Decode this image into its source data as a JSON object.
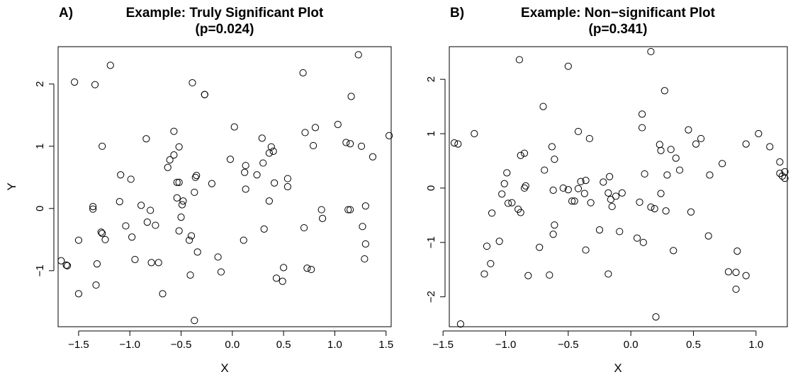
{
  "chart_data": [
    {
      "type": "scatter",
      "panel": "A)",
      "title": "Example: Truly Significant Plot",
      "subtitle": "(p=0.024)",
      "xlabel": "X",
      "ylabel": "Y",
      "xlim": [
        -1.7,
        1.55
      ],
      "ylim": [
        -1.9,
        2.6
      ],
      "xticks": [
        -1.5,
        -1.0,
        -0.5,
        0.0,
        0.5,
        1.0,
        1.5
      ],
      "xtick_labels": [
        "−1.5",
        "−1.0",
        "−0.5",
        "0.0",
        "0.5",
        "1.0",
        "1.5"
      ],
      "yticks": [
        -1,
        0,
        1,
        2
      ],
      "ytick_labels": [
        "−1",
        "0",
        "1",
        "2"
      ],
      "grid": false,
      "legend": "none",
      "points": [
        [
          -1.54,
          2.03
        ],
        [
          -1.34,
          1.99
        ],
        [
          -1.19,
          2.3
        ],
        [
          -0.39,
          2.02
        ],
        [
          -0.27,
          1.83
        ],
        [
          0.69,
          2.18
        ],
        [
          1.23,
          2.47
        ],
        [
          -0.57,
          1.24
        ],
        [
          -0.84,
          1.12
        ],
        [
          -0.27,
          1.83
        ],
        [
          0.02,
          1.31
        ],
        [
          0.29,
          1.13
        ],
        [
          0.38,
          0.99
        ],
        [
          0.4,
          0.92
        ],
        [
          0.71,
          1.22
        ],
        [
          0.81,
          1.3
        ],
        [
          0.79,
          1.01
        ],
        [
          1.03,
          1.35
        ],
        [
          1.11,
          1.06
        ],
        [
          1.15,
          1.04
        ],
        [
          1.16,
          1.8
        ],
        [
          1.26,
          1.0
        ],
        [
          1.37,
          0.83
        ],
        [
          1.53,
          1.17
        ],
        [
          -1.27,
          1.0
        ],
        [
          -1.09,
          0.54
        ],
        [
          -0.99,
          0.47
        ],
        [
          -0.63,
          0.66
        ],
        [
          -0.61,
          0.78
        ],
        [
          -0.57,
          0.86
        ],
        [
          -0.52,
          0.99
        ],
        [
          -0.54,
          0.42
        ],
        [
          -0.52,
          0.42
        ],
        [
          -0.36,
          0.5
        ],
        [
          -0.35,
          0.53
        ],
        [
          -0.2,
          0.4
        ],
        [
          -0.02,
          0.79
        ],
        [
          0.12,
          0.58
        ],
        [
          0.13,
          0.69
        ],
        [
          0.24,
          0.54
        ],
        [
          0.3,
          0.73
        ],
        [
          0.36,
          0.89
        ],
        [
          0.41,
          0.41
        ],
        [
          0.54,
          0.48
        ],
        [
          0.54,
          0.35
        ],
        [
          0.13,
          0.31
        ],
        [
          -0.37,
          0.26
        ],
        [
          -0.54,
          0.17
        ],
        [
          -0.48,
          0.12
        ],
        [
          -0.49,
          0.06
        ],
        [
          -1.1,
          0.11
        ],
        [
          -0.89,
          0.05
        ],
        [
          -0.8,
          -0.03
        ],
        [
          -1.36,
          0.03
        ],
        [
          -1.36,
          -0.01
        ],
        [
          0.36,
          0.12
        ],
        [
          0.87,
          -0.02
        ],
        [
          1.13,
          -0.02
        ],
        [
          1.15,
          -0.02
        ],
        [
          1.3,
          0.04
        ],
        [
          -1.04,
          -0.28
        ],
        [
          -0.83,
          -0.22
        ],
        [
          -0.75,
          -0.27
        ],
        [
          -0.5,
          -0.14
        ],
        [
          -0.52,
          -0.36
        ],
        [
          -0.4,
          -0.44
        ],
        [
          -0.42,
          -0.51
        ],
        [
          -1.28,
          -0.38
        ],
        [
          -1.27,
          -0.4
        ],
        [
          -1.24,
          -0.5
        ],
        [
          -1.5,
          -0.51
        ],
        [
          -0.98,
          -0.46
        ],
        [
          0.31,
          -0.33
        ],
        [
          0.7,
          -0.31
        ],
        [
          0.88,
          -0.16
        ],
        [
          1.27,
          -0.29
        ],
        [
          1.3,
          -0.57
        ],
        [
          0.11,
          -0.51
        ],
        [
          -0.34,
          -0.7
        ],
        [
          -0.14,
          -0.78
        ],
        [
          -0.95,
          -0.82
        ],
        [
          -0.79,
          -0.87
        ],
        [
          -0.72,
          -0.87
        ],
        [
          -1.67,
          -0.84
        ],
        [
          -1.62,
          -0.91
        ],
        [
          -1.61,
          -0.92
        ],
        [
          -1.32,
          -0.89
        ],
        [
          1.29,
          -0.81
        ],
        [
          -0.11,
          -1.02
        ],
        [
          -0.41,
          -1.07
        ],
        [
          0.5,
          -0.95
        ],
        [
          0.73,
          -0.96
        ],
        [
          0.77,
          -0.98
        ],
        [
          0.43,
          -1.12
        ],
        [
          0.49,
          -1.17
        ],
        [
          -1.33,
          -1.23
        ],
        [
          -1.5,
          -1.37
        ],
        [
          -0.68,
          -1.37
        ],
        [
          -0.37,
          -1.8
        ]
      ]
    },
    {
      "type": "scatter",
      "panel": "B)",
      "title": "Example: Non−significant Plot",
      "subtitle": "(p=0.341)",
      "xlabel": "X",
      "ylabel": "",
      "xlim": [
        -1.45,
        1.25
      ],
      "ylim": [
        -2.55,
        2.6
      ],
      "xticks": [
        -1.5,
        -1.0,
        -0.5,
        0.0,
        0.5,
        1.0
      ],
      "xtick_labels": [
        "−1.5",
        "−1.0",
        "−0.5",
        "0.0",
        "0.5",
        "1.0"
      ],
      "yticks": [
        -2,
        -1,
        0,
        1,
        2
      ],
      "ytick_labels": [
        "−2",
        "−1",
        "0",
        "1",
        "2"
      ],
      "grid": false,
      "legend": "none",
      "points": [
        [
          -0.89,
          2.36
        ],
        [
          -0.5,
          2.24
        ],
        [
          0.16,
          2.51
        ],
        [
          0.27,
          1.79
        ],
        [
          -0.7,
          1.5
        ],
        [
          0.09,
          1.36
        ],
        [
          0.09,
          1.11
        ],
        [
          -1.25,
          1.0
        ],
        [
          -0.42,
          1.04
        ],
        [
          -0.33,
          0.91
        ],
        [
          0.46,
          1.07
        ],
        [
          0.56,
          0.91
        ],
        [
          1.02,
          1.0
        ],
        [
          -1.41,
          0.83
        ],
        [
          -1.38,
          0.81
        ],
        [
          -0.63,
          0.76
        ],
        [
          -0.85,
          0.64
        ],
        [
          -0.88,
          0.6
        ],
        [
          0.23,
          0.8
        ],
        [
          0.24,
          0.69
        ],
        [
          0.32,
          0.71
        ],
        [
          0.52,
          0.81
        ],
        [
          0.73,
          0.45
        ],
        [
          0.92,
          0.81
        ],
        [
          1.11,
          0.76
        ],
        [
          -0.61,
          0.53
        ],
        [
          -0.69,
          0.33
        ],
        [
          -0.99,
          0.28
        ],
        [
          -0.4,
          0.12
        ],
        [
          -0.36,
          0.14
        ],
        [
          -0.22,
          0.11
        ],
        [
          -0.17,
          0.21
        ],
        [
          0.11,
          0.26
        ],
        [
          0.29,
          0.24
        ],
        [
          0.36,
          0.55
        ],
        [
          0.39,
          0.33
        ],
        [
          0.63,
          0.24
        ],
        [
          1.19,
          0.48
        ],
        [
          1.19,
          0.27
        ],
        [
          1.21,
          0.22
        ],
        [
          1.23,
          0.3
        ],
        [
          1.23,
          0.18
        ],
        [
          -1.01,
          0.08
        ],
        [
          -1.03,
          -0.11
        ],
        [
          -0.85,
          0.0
        ],
        [
          -0.84,
          0.04
        ],
        [
          -0.62,
          -0.04
        ],
        [
          -0.54,
          0.0
        ],
        [
          -0.5,
          -0.03
        ],
        [
          -0.42,
          -0.01
        ],
        [
          -0.37,
          -0.1
        ],
        [
          -0.18,
          -0.09
        ],
        [
          -0.16,
          -0.21
        ],
        [
          -0.12,
          -0.15
        ],
        [
          -0.07,
          -0.09
        ],
        [
          0.24,
          -0.1
        ],
        [
          -0.98,
          -0.28
        ],
        [
          -0.95,
          -0.27
        ],
        [
          -0.9,
          -0.39
        ],
        [
          -0.88,
          -0.45
        ],
        [
          -0.47,
          -0.24
        ],
        [
          -0.45,
          -0.24
        ],
        [
          -0.32,
          -0.27
        ],
        [
          -0.15,
          -0.34
        ],
        [
          0.07,
          -0.26
        ],
        [
          0.16,
          -0.35
        ],
        [
          0.19,
          -0.38
        ],
        [
          0.28,
          -0.42
        ],
        [
          0.48,
          -0.44
        ],
        [
          -1.11,
          -0.46
        ],
        [
          -0.61,
          -0.68
        ],
        [
          -0.62,
          -0.85
        ],
        [
          -0.25,
          -0.77
        ],
        [
          -0.09,
          -0.8
        ],
        [
          -1.05,
          -0.98
        ],
        [
          -1.15,
          -1.07
        ],
        [
          -0.73,
          -1.09
        ],
        [
          -0.36,
          -1.14
        ],
        [
          0.05,
          -0.92
        ],
        [
          0.1,
          -1.0
        ],
        [
          0.34,
          -1.15
        ],
        [
          0.62,
          -0.88
        ],
        [
          0.85,
          -1.16
        ],
        [
          -1.12,
          -1.39
        ],
        [
          -1.17,
          -1.58
        ],
        [
          -0.82,
          -1.61
        ],
        [
          -0.65,
          -1.6
        ],
        [
          -0.18,
          -1.58
        ],
        [
          0.78,
          -1.54
        ],
        [
          0.84,
          -1.55
        ],
        [
          0.92,
          -1.61
        ],
        [
          0.84,
          -1.86
        ],
        [
          0.2,
          -2.37
        ],
        [
          -1.36,
          -2.5
        ]
      ]
    }
  ]
}
